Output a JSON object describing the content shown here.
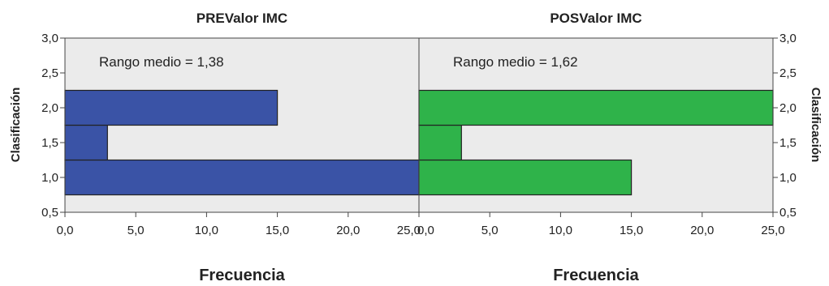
{
  "chart_data": [
    {
      "type": "bar",
      "orientation": "horizontal",
      "title": "PREValor IMC",
      "annotation": "Rango medio = 1,38",
      "xlabel": "Frecuencia",
      "ylabel": "Clasificación",
      "categories": [
        1.0,
        1.5,
        2.0
      ],
      "values": [
        25,
        3,
        15
      ],
      "bar_color": "#3a53a6",
      "xlim": [
        0,
        25
      ],
      "ylim": [
        0.5,
        3.0
      ],
      "xticks": [
        "0,0",
        "5,0",
        "10,0",
        "15,0",
        "20,0",
        "25,0"
      ],
      "yticks": [
        "0,5",
        "1,0",
        "1,5",
        "2,0",
        "2,5",
        "3,0"
      ],
      "direction": "left-to-right",
      "yaxis_side": "left"
    },
    {
      "type": "bar",
      "orientation": "horizontal",
      "title": "POSValor IMC",
      "annotation": "Rango medio = 1,62",
      "xlabel": "Frecuencia",
      "ylabel": "Clasificación",
      "categories": [
        1.0,
        1.5,
        2.0
      ],
      "values": [
        15,
        3,
        25
      ],
      "bar_color": "#2fb34a",
      "xlim": [
        0,
        25
      ],
      "ylim": [
        0.5,
        3.0
      ],
      "xticks": [
        "0,0",
        "5,0",
        "10,0",
        "15,0",
        "20,0",
        "25,0"
      ],
      "yticks": [
        "0,5",
        "1,0",
        "1,5",
        "2,0",
        "2,5",
        "3,0"
      ],
      "direction": "left-to-right",
      "yaxis_side": "right"
    }
  ],
  "plot_background": "#ebebeb"
}
